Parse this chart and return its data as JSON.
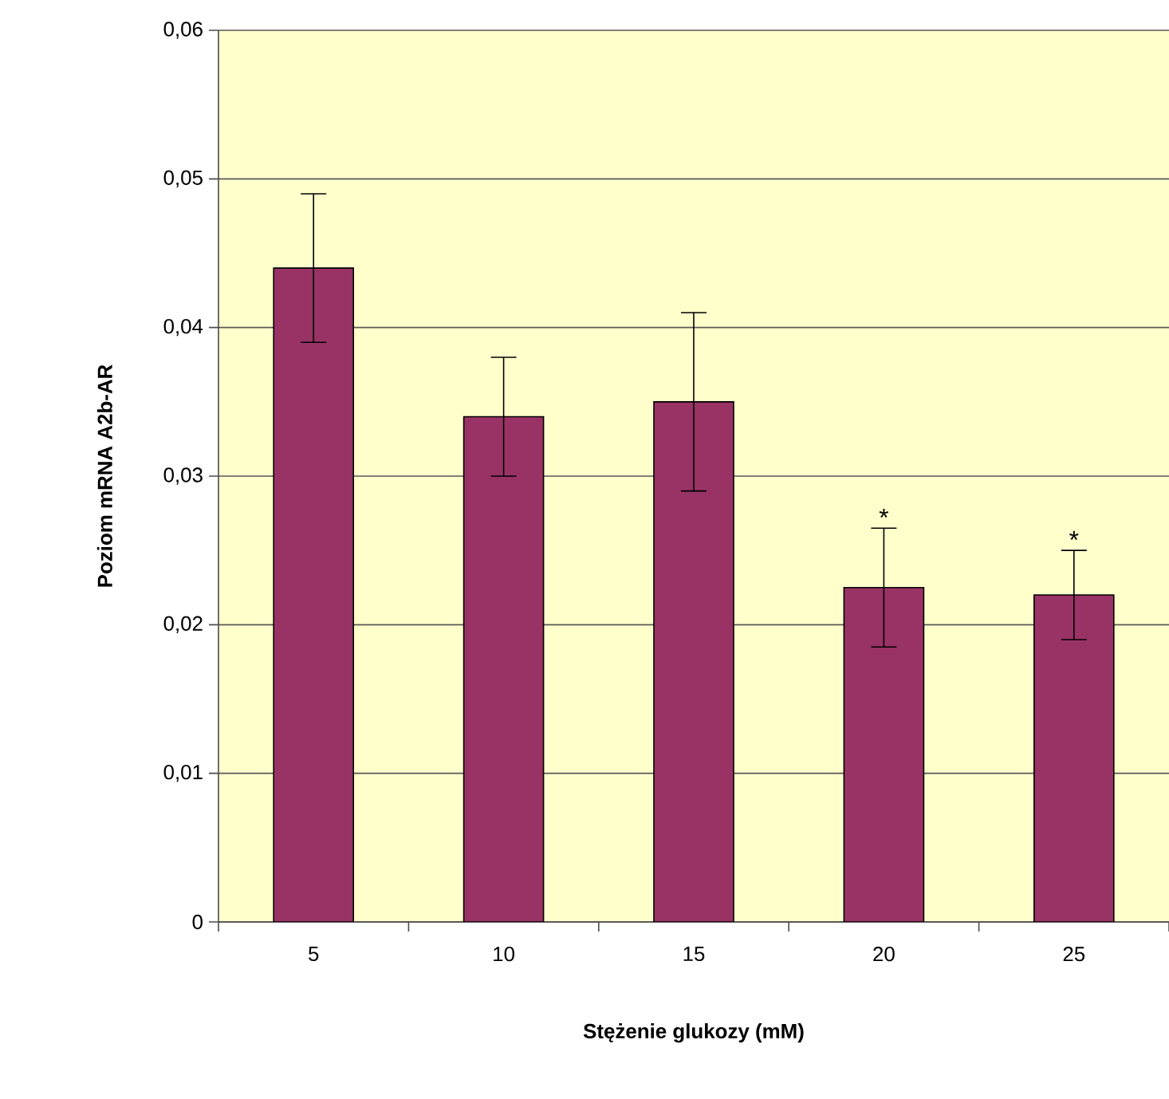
{
  "chart_data": {
    "type": "bar",
    "xlabel": "Stężenie glukozy (mM)",
    "ylabel": "Poziom mRNA A2b-AR",
    "categories": [
      "5",
      "10",
      "15",
      "20",
      "25"
    ],
    "values": [
      0.044,
      0.034,
      0.035,
      0.0225,
      0.022
    ],
    "errors": [
      0.005,
      0.004,
      0.006,
      0.004,
      0.003
    ],
    "color": "#993366",
    "ylim": [
      0,
      0.06
    ],
    "yticks": [
      0,
      {
        "value": 0.01,
        "label": "0,01"
      },
      {
        "value": 0.02,
        "label": "0,02"
      },
      {
        "value": 0.03,
        "label": "0,03"
      },
      {
        "value": 0.04,
        "label": "0,04"
      },
      {
        "value": 0.05,
        "label": "0,05"
      },
      {
        "value": 0.06,
        "label": "0,06"
      }
    ],
    "grid": "y",
    "annotations": [
      {
        "text": "*",
        "x": "20",
        "y": 0.0265
      },
      {
        "text": "*",
        "x": "25",
        "y": 0.025
      }
    ]
  }
}
